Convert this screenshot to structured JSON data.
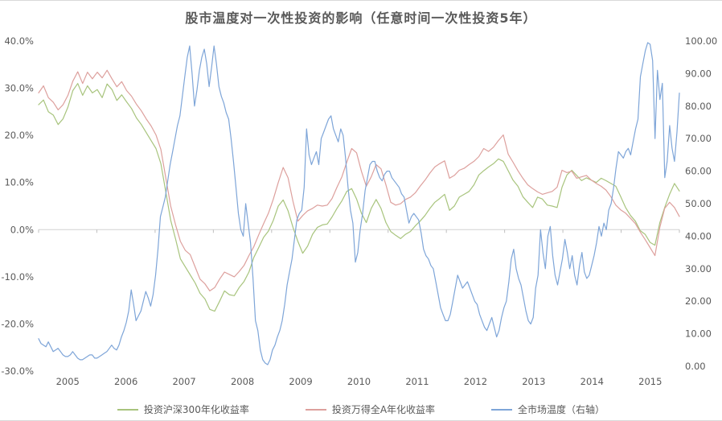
{
  "title": "股市温度对一次性投资的影响（任意时间一次性投资5年）",
  "chart_data": {
    "type": "line",
    "title": "股市温度对一次性投资的影响（任意时间一次性投资5年）",
    "x_start": "2005-01",
    "x_end": "2015-12",
    "x_tick_labels": [
      "2005",
      "2006",
      "2007",
      "2008",
      "2009",
      "2010",
      "2011",
      "2012",
      "2013",
      "2014",
      "2015"
    ],
    "left_axis": {
      "min": -30,
      "max": 40,
      "unit": "%",
      "tick_values": [
        40,
        30,
        20,
        10,
        0,
        -10,
        -20,
        -30
      ],
      "tick_labels": [
        "40.0%",
        "30.0%",
        "20.0%",
        "10.0%",
        "0.0%",
        "-10.0%",
        "-20.0%",
        "-30.0%"
      ]
    },
    "right_axis": {
      "min": 0,
      "max": 100,
      "tick_values": [
        100,
        90,
        80,
        70,
        60,
        50,
        40,
        30,
        20,
        10,
        0
      ],
      "tick_labels": [
        "100.00",
        "90.00",
        "80.00",
        "70.00",
        "60.00",
        "50.00",
        "40.00",
        "30.00",
        "20.00",
        "10.00",
        "0.00"
      ]
    },
    "grid": "zero-line-only",
    "legend_position": "bottom-center",
    "series": [
      {
        "name": "投资沪深300年化收益率",
        "axis": "left",
        "color": "#a8c47d",
        "sampling": "monthly 2005-01..2015-12, annualized % read from chart",
        "values": [
          26.5,
          27.5,
          25.0,
          24.3,
          22.3,
          23.5,
          26.0,
          29.5,
          31.0,
          28.5,
          30.5,
          29.0,
          29.7,
          28.0,
          30.9,
          29.7,
          27.4,
          28.6,
          27.1,
          25.7,
          23.7,
          22.3,
          20.6,
          18.9,
          17.2,
          14.0,
          8.0,
          2.0,
          -2.0,
          -6.2,
          -7.9,
          -9.6,
          -11.3,
          -13.5,
          -14.7,
          -16.9,
          -17.3,
          -15.2,
          -13.0,
          -13.8,
          -14.0,
          -12.3,
          -11.0,
          -9.0,
          -5.9,
          -3.8,
          -1.6,
          -0.3,
          2.0,
          5.0,
          6.3,
          4.0,
          0.5,
          -2.5,
          -5.0,
          -3.5,
          -1.0,
          0.5,
          1.0,
          1.2,
          2.7,
          4.5,
          6.1,
          8.1,
          8.7,
          6.5,
          3.5,
          1.5,
          4.5,
          6.4,
          4.5,
          1.5,
          -0.4,
          -1.2,
          -1.9,
          -1.0,
          -0.4,
          0.8,
          1.8,
          3.0,
          4.5,
          5.8,
          6.6,
          7.5,
          4.1,
          5.0,
          6.9,
          7.5,
          8.1,
          9.5,
          11.6,
          12.5,
          13.3,
          14.0,
          15.0,
          14.5,
          12.5,
          10.5,
          9.2,
          7.0,
          5.8,
          4.7,
          6.9,
          6.5,
          5.2,
          5.0,
          4.7,
          9.0,
          11.6,
          12.6,
          11.5,
          10.4,
          11.0,
          10.5,
          10.0,
          10.9,
          10.4,
          9.8,
          9.2,
          7.0,
          4.7,
          3.0,
          1.8,
          -0.2,
          -1.0,
          -2.7,
          -3.3,
          1.5,
          4.7,
          7.5,
          9.8,
          8.2
        ]
      },
      {
        "name": "投资万得全A年化收益率",
        "axis": "left",
        "color": "#dda09d",
        "sampling": "monthly 2005-01..2015-12, annualized % read from chart",
        "values": [
          29.0,
          30.5,
          28.0,
          27.0,
          25.4,
          26.5,
          28.5,
          31.5,
          33.5,
          31.0,
          33.4,
          32.0,
          33.4,
          32.2,
          33.8,
          32.0,
          30.3,
          31.4,
          29.5,
          28.3,
          26.6,
          25.2,
          23.5,
          22.0,
          20.1,
          17.0,
          11.0,
          5.0,
          1.0,
          -2.5,
          -4.4,
          -5.3,
          -7.9,
          -10.5,
          -11.5,
          -13.0,
          -12.3,
          -10.5,
          -9.0,
          -9.5,
          -10.0,
          -8.9,
          -7.6,
          -5.5,
          -3.6,
          -1.1,
          1.3,
          3.5,
          6.5,
          10.0,
          13.2,
          11.0,
          6.0,
          1.8,
          3.0,
          4.0,
          4.5,
          5.2,
          5.0,
          5.2,
          6.6,
          9.0,
          11.2,
          14.3,
          17.2,
          16.3,
          12.4,
          9.2,
          11.2,
          13.8,
          12.9,
          9.5,
          5.8,
          5.2,
          5.5,
          6.4,
          6.9,
          7.8,
          9.2,
          10.5,
          12.0,
          13.3,
          14.0,
          14.6,
          10.9,
          11.5,
          12.6,
          13.0,
          13.8,
          14.5,
          15.5,
          17.2,
          16.6,
          17.5,
          18.9,
          20.1,
          16.0,
          14.3,
          12.5,
          10.9,
          9.5,
          8.7,
          8.0,
          7.5,
          7.8,
          8.1,
          9.0,
          12.6,
          12.1,
          12.4,
          10.9,
          11.2,
          11.5,
          10.5,
          9.8,
          9.2,
          8.4,
          7.0,
          5.2,
          4.2,
          3.5,
          2.4,
          1.3,
          -0.5,
          -2.1,
          -3.8,
          -5.5,
          0.5,
          4.5,
          5.8,
          4.7,
          2.8
        ]
      },
      {
        "name": "全市场温度（右轴）",
        "axis": "right",
        "color": "#7ea5d8",
        "sampling": "semi-monthly 2005-01..2015-12, temperature 0-100 read from chart",
        "values": [
          8.5,
          7,
          6.5,
          6,
          7.5,
          6,
          4.5,
          5,
          5.5,
          4.5,
          3.5,
          3,
          3,
          3.5,
          4.5,
          3.5,
          2.5,
          2,
          2,
          2.5,
          3,
          3.5,
          3.5,
          2.5,
          2.5,
          3,
          3.5,
          4,
          4.5,
          5.5,
          6.5,
          5.5,
          5,
          6.5,
          9,
          11,
          13.5,
          17,
          23.5,
          19,
          14,
          15.5,
          17,
          20,
          23,
          21,
          18.5,
          22,
          28,
          36,
          46,
          49,
          52,
          57,
          62,
          66,
          70,
          74,
          77,
          83,
          89,
          95,
          98.5,
          90,
          80,
          85,
          91,
          95,
          97.5,
          93,
          86,
          92,
          98.5,
          93,
          86,
          83,
          81,
          78,
          76,
          70,
          63,
          55,
          47,
          42,
          40,
          50,
          44,
          38,
          27,
          14,
          11,
          5,
          2,
          1,
          0.5,
          2,
          5,
          6.5,
          9,
          11,
          14,
          19,
          25,
          29,
          33,
          39,
          45,
          47,
          48,
          55,
          73,
          65,
          62,
          64,
          66,
          62,
          70,
          72,
          74,
          76,
          77,
          73,
          71,
          69,
          73,
          71,
          64,
          55,
          48,
          44,
          32,
          35,
          42,
          47,
          54,
          58,
          62,
          63,
          63,
          60,
          58,
          57,
          59,
          60,
          60,
          58,
          57,
          56,
          55,
          53,
          52,
          48,
          44,
          46,
          47,
          46,
          45,
          41,
          36,
          34,
          33,
          31,
          30,
          26,
          22,
          18,
          16,
          14,
          14,
          16,
          20,
          24,
          28,
          26,
          24,
          25,
          26,
          24,
          22,
          20,
          19,
          16,
          14,
          12,
          11,
          13,
          15,
          12,
          9,
          11,
          15,
          18,
          20,
          26,
          33,
          36,
          30,
          27,
          25,
          21,
          17,
          14,
          13,
          15,
          24,
          28,
          42,
          35,
          30,
          40,
          43,
          34,
          28,
          25,
          29,
          33,
          39,
          35,
          30,
          34,
          28,
          25,
          31,
          35,
          29,
          27,
          28,
          31,
          34,
          38,
          43,
          40,
          44,
          42,
          48,
          50,
          55,
          61,
          66,
          65,
          64,
          66,
          67,
          65,
          69,
          73,
          76,
          89,
          93,
          97,
          99.5,
          99,
          94,
          70,
          91,
          82,
          87,
          58,
          63,
          74,
          67,
          63,
          72,
          84
        ]
      }
    ]
  },
  "legend": {
    "item1": "投资沪深300年化收益率",
    "item2": "投资万得全A年化收益率",
    "item3": "全市场温度（右轴）"
  },
  "colors": {
    "csi300_line": "#a8c47d",
    "wind_all_a_line": "#dda09d",
    "temperature_line": "#7ea5d8",
    "axis_text": "#595959",
    "zero_line": "#d1d1d1",
    "border_rule": "#d9d9d9"
  }
}
